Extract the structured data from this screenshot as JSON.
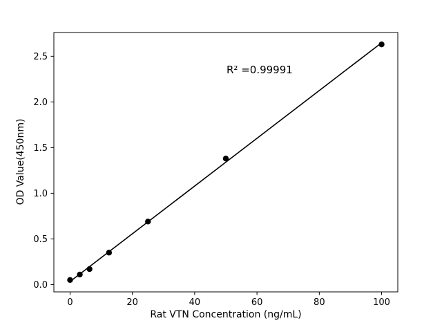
{
  "figure": {
    "background": "#ffffff",
    "axis_color": "#000000",
    "tick_label_color": "#000000"
  },
  "chart_data": {
    "type": "scatter",
    "title": "",
    "xlabel": "Rat VTN Concentration (ng/mL)",
    "ylabel": "OD Value(450nm)",
    "annotation": "R² =0.99991",
    "x": [
      0,
      3.125,
      6.25,
      12.5,
      25,
      50,
      100
    ],
    "y": [
      0.05,
      0.11,
      0.17,
      0.35,
      0.69,
      1.38,
      2.63
    ],
    "fit_line": true,
    "marker_color": "#000000",
    "line_color": "#000000",
    "xlim": [
      -5.2,
      105.2
    ],
    "ylim": [
      -0.08,
      2.76
    ],
    "xticks": [
      0,
      20,
      40,
      60,
      80,
      100
    ],
    "xtick_labels": [
      "0",
      "20",
      "40",
      "60",
      "80",
      "100"
    ],
    "yticks": [
      0.0,
      0.5,
      1.0,
      1.5,
      2.0,
      2.5
    ],
    "ytick_labels": [
      "0.0",
      "0.5",
      "1.0",
      "1.5",
      "2.0",
      "2.5"
    ],
    "grid": false
  }
}
